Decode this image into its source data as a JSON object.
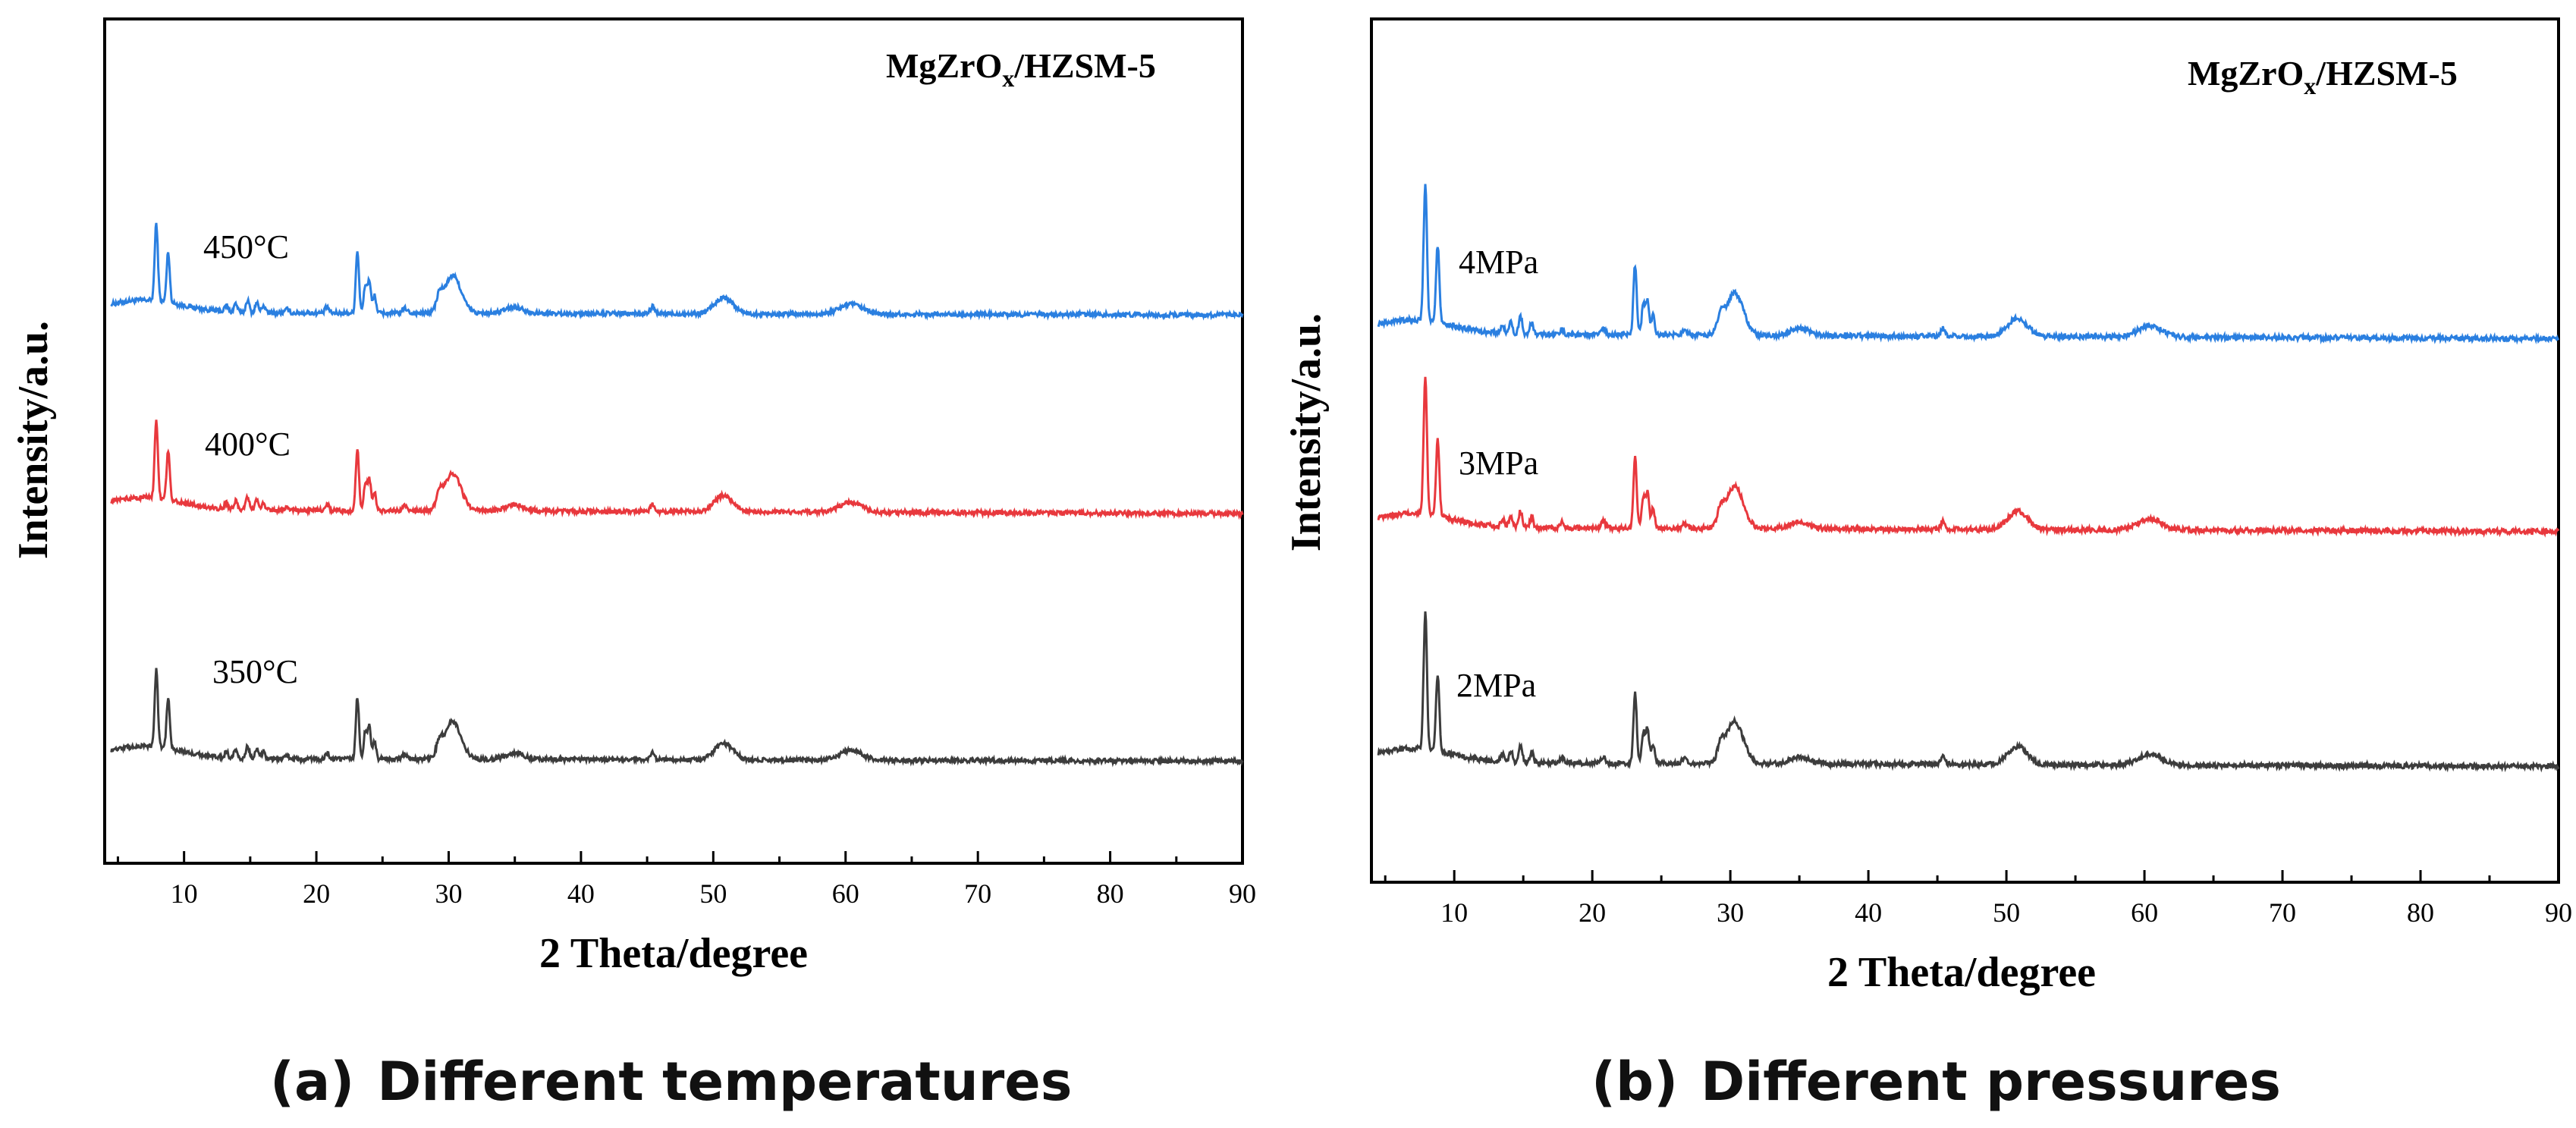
{
  "colors": {
    "axis": "#000000",
    "series_top": "#2A7FE0",
    "series_mid": "#E8383D",
    "series_bottom": "#3C3C3C"
  },
  "chart_data": [
    {
      "type": "line",
      "panel": "a",
      "caption_letter": "(a)",
      "caption_text": "Different temperatures",
      "sample_label": "MgZrO",
      "sample_sub": "x",
      "sample_suffix": "/HZSM-5",
      "xlabel": "2 Theta/degree",
      "ylabel": "Intensity/a.u.",
      "xlim": [
        4,
        90
      ],
      "xticks": [
        10,
        20,
        30,
        40,
        50,
        60,
        70,
        80,
        90
      ],
      "grid": false,
      "legend": "inline labels above each curve",
      "series": [
        {
          "name": "450°C",
          "color_key": "series_top",
          "offset": 2.0,
          "tilt": 0.02
        },
        {
          "name": "400°C",
          "color_key": "series_mid",
          "offset": 1.05,
          "tilt": 0.03
        },
        {
          "name": "350°C",
          "color_key": "series_bottom",
          "offset": 0.0,
          "tilt": 0.02
        }
      ],
      "peaks": [
        {
          "x": 7.9,
          "h": 0.62,
          "w": 0.17
        },
        {
          "x": 8.8,
          "h": 0.4,
          "w": 0.17
        },
        {
          "x": 13.2,
          "h": 0.05,
          "w": 0.18
        },
        {
          "x": 13.9,
          "h": 0.07,
          "w": 0.18
        },
        {
          "x": 14.8,
          "h": 0.1,
          "w": 0.18
        },
        {
          "x": 15.5,
          "h": 0.08,
          "w": 0.18
        },
        {
          "x": 16.0,
          "h": 0.06,
          "w": 0.18
        },
        {
          "x": 17.8,
          "h": 0.03,
          "w": 0.2
        },
        {
          "x": 20.8,
          "h": 0.05,
          "w": 0.2
        },
        {
          "x": 23.1,
          "h": 0.5,
          "w": 0.17
        },
        {
          "x": 23.7,
          "h": 0.22,
          "w": 0.17
        },
        {
          "x": 24.0,
          "h": 0.26,
          "w": 0.17
        },
        {
          "x": 24.4,
          "h": 0.14,
          "w": 0.17
        },
        {
          "x": 26.7,
          "h": 0.04,
          "w": 0.25
        },
        {
          "x": 29.3,
          "h": 0.1,
          "w": 0.3
        },
        {
          "x": 30.3,
          "h": 0.3,
          "w": 0.9
        },
        {
          "x": 35.0,
          "h": 0.05,
          "w": 1.0
        },
        {
          "x": 45.4,
          "h": 0.06,
          "w": 0.2
        },
        {
          "x": 50.8,
          "h": 0.13,
          "w": 1.0
        },
        {
          "x": 60.4,
          "h": 0.08,
          "w": 1.2
        }
      ]
    },
    {
      "type": "line",
      "panel": "b",
      "caption_letter": "(b)",
      "caption_text": "Different pressures",
      "sample_label": "MgZrO",
      "sample_sub": "x",
      "sample_suffix": "/HZSM-5",
      "xlabel": "2 Theta/degree",
      "ylabel": "Intensity/a.u.",
      "xlim": [
        4,
        90
      ],
      "xticks": [
        10,
        20,
        30,
        40,
        50,
        60,
        70,
        80,
        90
      ],
      "grid": false,
      "legend": "inline labels above each curve",
      "series": [
        {
          "name": "4MPa",
          "color_key": "series_top",
          "offset": 1.95,
          "tilt": 0.035
        },
        {
          "name": "3MPa",
          "color_key": "series_mid",
          "offset": 1.05,
          "tilt": 0.03
        },
        {
          "name": "2MPa",
          "color_key": "series_bottom",
          "offset": 0.0,
          "tilt": 0.03
        }
      ],
      "peaks": [
        {
          "x": 7.9,
          "h": 0.98,
          "w": 0.17
        },
        {
          "x": 8.8,
          "h": 0.55,
          "w": 0.17
        },
        {
          "x": 13.5,
          "h": 0.06,
          "w": 0.18
        },
        {
          "x": 14.1,
          "h": 0.08,
          "w": 0.18
        },
        {
          "x": 14.8,
          "h": 0.12,
          "w": 0.18
        },
        {
          "x": 15.6,
          "h": 0.08,
          "w": 0.18
        },
        {
          "x": 17.8,
          "h": 0.04,
          "w": 0.2
        },
        {
          "x": 20.8,
          "h": 0.05,
          "w": 0.2
        },
        {
          "x": 23.1,
          "h": 0.5,
          "w": 0.17
        },
        {
          "x": 23.7,
          "h": 0.22,
          "w": 0.17
        },
        {
          "x": 24.0,
          "h": 0.25,
          "w": 0.17
        },
        {
          "x": 24.4,
          "h": 0.14,
          "w": 0.17
        },
        {
          "x": 26.7,
          "h": 0.04,
          "w": 0.25
        },
        {
          "x": 29.3,
          "h": 0.1,
          "w": 0.3
        },
        {
          "x": 30.3,
          "h": 0.3,
          "w": 0.9
        },
        {
          "x": 35.0,
          "h": 0.05,
          "w": 1.0
        },
        {
          "x": 45.4,
          "h": 0.06,
          "w": 0.2
        },
        {
          "x": 50.8,
          "h": 0.13,
          "w": 1.0
        },
        {
          "x": 60.4,
          "h": 0.08,
          "w": 1.2
        }
      ]
    }
  ]
}
